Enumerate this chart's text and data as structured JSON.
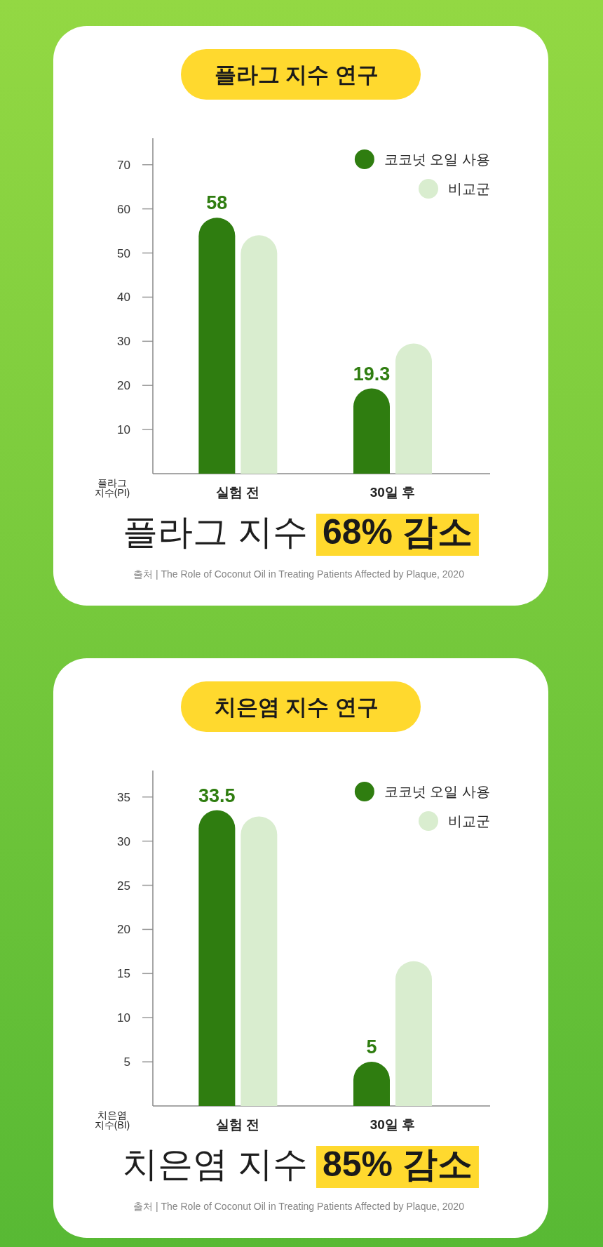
{
  "chart_data": [
    {
      "type": "bar",
      "title": "플라그 지수 연구",
      "categories": [
        "실험 전",
        "30일 후"
      ],
      "ylabel": "플라그 지수(PI)",
      "ylim": [
        0,
        76
      ],
      "yticks": [
        10,
        20,
        30,
        40,
        50,
        60,
        70
      ],
      "legend": "top right",
      "series": [
        {
          "name": "코코넛 오일 사용",
          "color": "#2f7d10",
          "values": [
            58,
            19.3
          ],
          "value_labels": [
            "58",
            "19.3"
          ]
        },
        {
          "name": "비교군",
          "color": "#d9edcf",
          "values": [
            54,
            29.5
          ]
        }
      ],
      "annotations": [
        "플라그 지수",
        "68% 감소",
        "출처 | The Role of Coconut Oil in Treating Patients Affected by Plaque, 2020"
      ]
    },
    {
      "type": "bar",
      "title": "치은염 지수 연구",
      "categories": [
        "실험 전",
        "30일 후"
      ],
      "ylabel": "치은염 지수(BI)",
      "ylim": [
        0,
        38
      ],
      "yticks": [
        5,
        10,
        15,
        20,
        25,
        30,
        35
      ],
      "legend": "top right",
      "series": [
        {
          "name": "코코넛 오일 사용",
          "color": "#2f7d10",
          "values": [
            33.5,
            5
          ],
          "value_labels": [
            "33.5",
            "5"
          ]
        },
        {
          "name": "비교군",
          "color": "#d9edcf",
          "values": [
            32.8,
            16.4
          ]
        }
      ],
      "annotations": [
        "치은염 지수",
        "85% 감소",
        "출처 | The Role of Coconut Oil in Treating Patients Affected by Plaque, 2020"
      ]
    }
  ]
}
